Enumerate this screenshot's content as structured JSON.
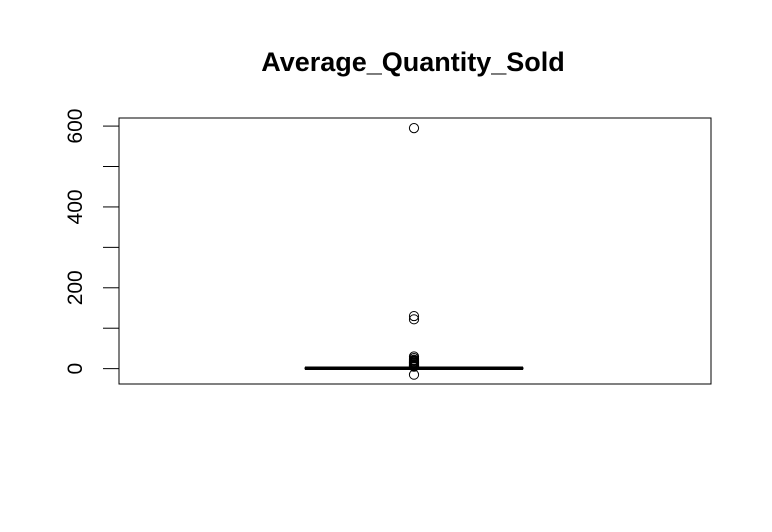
{
  "chart_data": {
    "type": "boxplot",
    "title": "Average_Quantity_Sold",
    "xlabel": "",
    "ylabel": "",
    "ylim": [
      -38,
      620
    ],
    "yticks": [
      0,
      200,
      400,
      600
    ],
    "ytick_labels": [
      "0",
      "200",
      "400",
      "600"
    ],
    "grid": false,
    "box": {
      "min": 0,
      "q1": 0,
      "median": 1,
      "q3": 2,
      "max": 4
    },
    "outliers": [
      595,
      130,
      122,
      30,
      26,
      22,
      20,
      18,
      16,
      15,
      14,
      12,
      10,
      9,
      8,
      7,
      6,
      5,
      -15
    ]
  }
}
